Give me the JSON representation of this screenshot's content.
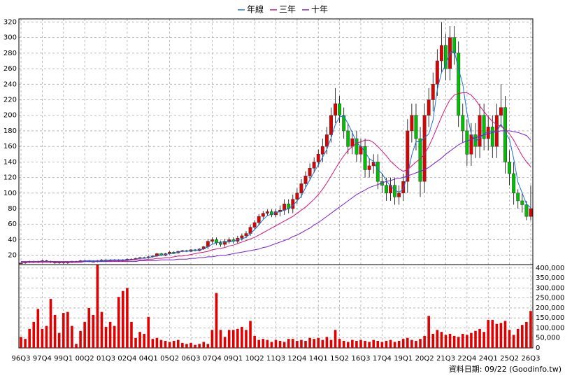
{
  "chart_data": {
    "type": "candlestick",
    "categories": [
      "96Q3",
      null,
      null,
      null,
      null,
      "97Q4",
      null,
      null,
      null,
      null,
      "99Q1",
      null,
      null,
      null,
      null,
      "00Q2",
      null,
      null,
      null,
      null,
      "01Q3",
      null,
      null,
      null,
      null,
      "02Q4",
      null,
      null,
      null,
      null,
      "04Q1",
      null,
      null,
      null,
      null,
      "05Q2",
      null,
      null,
      null,
      null,
      "06Q3",
      null,
      null,
      null,
      null,
      "07Q4",
      null,
      null,
      null,
      null,
      "09Q1",
      null,
      null,
      null,
      null,
      "10Q2",
      null,
      null,
      null,
      null,
      "11Q3",
      null,
      null,
      null,
      null,
      "12Q4",
      null,
      null,
      null,
      null,
      "14Q1",
      null,
      null,
      null,
      null,
      "15Q2",
      null,
      null,
      null,
      null,
      "16Q3",
      null,
      null,
      null,
      null,
      "17Q4",
      null,
      null,
      null,
      null,
      "19Q1",
      null,
      null,
      null,
      null,
      "20Q2",
      null,
      null,
      null,
      null,
      "21Q3",
      null,
      null,
      null,
      null,
      "22Q4",
      null,
      null,
      null,
      null,
      "24Q1",
      null,
      null,
      null,
      null,
      "25Q2",
      null,
      null,
      null,
      null,
      "26Q3"
    ],
    "open": [
      10,
      10,
      11,
      12,
      11,
      12,
      13,
      12,
      11,
      10,
      11,
      10,
      11,
      12,
      12,
      13,
      13,
      12,
      12,
      13,
      14,
      13,
      14,
      14,
      13,
      14,
      15,
      15,
      16,
      17,
      17,
      18,
      19,
      22,
      20,
      22,
      24,
      23,
      25,
      26,
      25,
      27,
      26,
      28,
      31,
      38,
      40,
      36,
      34,
      38,
      40,
      38,
      42,
      45,
      48,
      56,
      62,
      70,
      74,
      76,
      72,
      76,
      78,
      86,
      80,
      92,
      100,
      112,
      122,
      132,
      140,
      150,
      160,
      175,
      200,
      215,
      200,
      180,
      160,
      170,
      150,
      160,
      130,
      135,
      140,
      115,
      110,
      100,
      110,
      95,
      100,
      115,
      180,
      200,
      170,
      115,
      200,
      220,
      240,
      270,
      290,
      260,
      300,
      280,
      200,
      180,
      150,
      175,
      160,
      200,
      170,
      185,
      160,
      200,
      210,
      140,
      125,
      100,
      90,
      85,
      70
    ],
    "high": [
      11,
      12,
      13,
      13,
      13,
      14,
      14,
      13,
      12,
      12,
      12,
      12,
      13,
      13,
      14,
      14,
      14,
      13,
      14,
      15,
      15,
      15,
      15,
      15,
      15,
      16,
      16,
      17,
      18,
      18,
      19,
      20,
      23,
      23,
      23,
      25,
      25,
      26,
      27,
      27,
      28,
      28,
      29,
      32,
      41,
      43,
      43,
      39,
      41,
      43,
      43,
      45,
      48,
      51,
      59,
      65,
      73,
      77,
      79,
      79,
      79,
      84,
      92,
      92,
      98,
      106,
      118,
      128,
      138,
      146,
      156,
      170,
      185,
      210,
      235,
      225,
      210,
      190,
      180,
      180,
      170,
      170,
      145,
      150,
      150,
      125,
      120,
      120,
      120,
      110,
      125,
      195,
      215,
      215,
      185,
      215,
      235,
      255,
      285,
      320,
      305,
      315,
      315,
      295,
      215,
      195,
      190,
      190,
      215,
      215,
      200,
      200,
      215,
      240,
      225,
      155,
      140,
      105,
      100,
      90,
      110
    ],
    "low": [
      9,
      9,
      10,
      10,
      10,
      11,
      11,
      10,
      9,
      9,
      9,
      9,
      10,
      11,
      11,
      12,
      11,
      11,
      11,
      12,
      12,
      12,
      13,
      12,
      12,
      13,
      14,
      14,
      15,
      16,
      16,
      17,
      18,
      19,
      19,
      21,
      22,
      22,
      24,
      24,
      24,
      25,
      25,
      27,
      28,
      35,
      33,
      31,
      31,
      35,
      35,
      35,
      39,
      42,
      45,
      53,
      59,
      67,
      71,
      69,
      69,
      70,
      72,
      74,
      74,
      86,
      94,
      106,
      116,
      126,
      134,
      140,
      150,
      165,
      190,
      190,
      170,
      150,
      150,
      140,
      140,
      120,
      120,
      125,
      105,
      100,
      90,
      90,
      85,
      85,
      90,
      100,
      165,
      155,
      95,
      100,
      185,
      205,
      225,
      255,
      245,
      245,
      265,
      185,
      165,
      135,
      135,
      145,
      145,
      155,
      155,
      145,
      145,
      185,
      125,
      110,
      85,
      80,
      75,
      65,
      65
    ],
    "close": [
      10,
      11,
      12,
      11,
      12,
      13,
      12,
      11,
      10,
      11,
      10,
      11,
      12,
      12,
      13,
      13,
      12,
      12,
      13,
      14,
      13,
      14,
      14,
      13,
      14,
      15,
      15,
      16,
      17,
      17,
      18,
      19,
      22,
      20,
      22,
      24,
      23,
      25,
      26,
      25,
      27,
      26,
      28,
      31,
      38,
      40,
      36,
      34,
      38,
      40,
      38,
      42,
      45,
      48,
      56,
      62,
      70,
      74,
      76,
      72,
      76,
      78,
      86,
      80,
      92,
      100,
      112,
      122,
      132,
      140,
      150,
      160,
      175,
      200,
      215,
      200,
      180,
      160,
      170,
      150,
      160,
      130,
      135,
      140,
      115,
      110,
      100,
      110,
      95,
      100,
      115,
      180,
      200,
      170,
      115,
      200,
      220,
      240,
      270,
      290,
      260,
      300,
      280,
      200,
      180,
      150,
      175,
      160,
      200,
      170,
      185,
      160,
      200,
      210,
      140,
      125,
      100,
      90,
      85,
      70,
      80
    ],
    "up_color": "#e00000",
    "down_color": "#00c000",
    "series": [
      {
        "name": "年線",
        "color": "#1f6fd6",
        "values": [
          10,
          11,
          11,
          11,
          12,
          12,
          12,
          12,
          12,
          11,
          11,
          11,
          11,
          11,
          12,
          13,
          13,
          13,
          13,
          13,
          13,
          14,
          14,
          14,
          14,
          14,
          14,
          15,
          16,
          16,
          17,
          18,
          19,
          20,
          21,
          22,
          22,
          24,
          25,
          25,
          26,
          26,
          27,
          28,
          31,
          34,
          36,
          37,
          37,
          37,
          38,
          40,
          41,
          43,
          48,
          53,
          59,
          66,
          71,
          73,
          75,
          76,
          78,
          80,
          84,
          90,
          96,
          107,
          117,
          127,
          136,
          146,
          156,
          171,
          188,
          198,
          199,
          189,
          178,
          165,
          160,
          153,
          144,
          141,
          130,
          125,
          116,
          109,
          104,
          101,
          105,
          123,
          149,
          166,
          166,
          171,
          176,
          194,
          233,
          255,
          265,
          280,
          283,
          260,
          240,
          203,
          176,
          166,
          171,
          176,
          179,
          179,
          179,
          189,
          178,
          169,
          144,
          114,
          100,
          86,
          81
        ]
      },
      {
        "name": "三年",
        "color": "#d6137a",
        "values": [
          11,
          11,
          11,
          11,
          11,
          11,
          11,
          11,
          11,
          11,
          11,
          11,
          11,
          11,
          11,
          12,
          12,
          12,
          12,
          12,
          12,
          13,
          13,
          13,
          13,
          13,
          14,
          14,
          14,
          14,
          15,
          15,
          16,
          16,
          17,
          17,
          18,
          19,
          19,
          20,
          21,
          22,
          23,
          24,
          25,
          27,
          28,
          29,
          30,
          32,
          33,
          35,
          37,
          39,
          41,
          43,
          46,
          49,
          52,
          55,
          58,
          61,
          64,
          67,
          70,
          74,
          78,
          82,
          87,
          92,
          98,
          105,
          113,
          122,
          131,
          140,
          148,
          155,
          160,
          164,
          166,
          168,
          168,
          165,
          160,
          154,
          148,
          141,
          136,
          131,
          128,
          130,
          135,
          140,
          144,
          150,
          160,
          172,
          185,
          198,
          210,
          220,
          226,
          228,
          229,
          229,
          226,
          220,
          212,
          205,
          198,
          192,
          188,
          186,
          182,
          176,
          168,
          158,
          148,
          140,
          134
        ]
      },
      {
        "name": "十年",
        "color": "#7a1fd6",
        "values": [
          12,
          12,
          12,
          12,
          12,
          12,
          12,
          12,
          12,
          12,
          12,
          12,
          12,
          12,
          12,
          12,
          12,
          12,
          12,
          12,
          12,
          12,
          12,
          12,
          12,
          12,
          12,
          12,
          13,
          13,
          13,
          13,
          13,
          14,
          14,
          14,
          14,
          15,
          15,
          15,
          16,
          16,
          17,
          17,
          18,
          18,
          19,
          20,
          20,
          21,
          22,
          23,
          24,
          25,
          26,
          27,
          28,
          30,
          31,
          33,
          35,
          37,
          39,
          41,
          44,
          46,
          49,
          52,
          55,
          59,
          62,
          66,
          70,
          74,
          78,
          82,
          86,
          90,
          94,
          98,
          101,
          104,
          107,
          109,
          111,
          113,
          115,
          116,
          118,
          119,
          120,
          122,
          124,
          126,
          128,
          130,
          133,
          137,
          141,
          145,
          150,
          154,
          158,
          162,
          165,
          167,
          169,
          171,
          173,
          175,
          176,
          178,
          179,
          180,
          180,
          180,
          179,
          178,
          176,
          174,
          168
        ]
      }
    ],
    "ylim": [
      8,
      324
    ],
    "yticks": [
      20,
      40,
      60,
      80,
      100,
      120,
      140,
      160,
      180,
      200,
      220,
      240,
      260,
      280,
      300,
      320
    ],
    "grid": true,
    "volume": {
      "color": "#e00000",
      "ylim": [
        0,
        417000
      ],
      "yticks": [
        0,
        {
          "value": 50000,
          "label": "50,000"
        },
        {
          "value": 100000,
          "label": "100,000"
        },
        {
          "value": 150000,
          "label": "150,000"
        },
        {
          "value": 200000,
          "label": "200,000"
        },
        {
          "value": 250000,
          "label": "250,000"
        },
        {
          "value": 300000,
          "label": "300,000"
        },
        {
          "value": 350000,
          "label": "350,000"
        },
        {
          "value": 400000,
          "label": "400,000"
        }
      ],
      "values": [
        55000,
        45000,
        95000,
        130000,
        195000,
        95000,
        110000,
        245000,
        165000,
        75000,
        175000,
        180000,
        110000,
        20000,
        85000,
        130000,
        200000,
        165000,
        415000,
        180000,
        105000,
        130000,
        110000,
        255000,
        285000,
        300000,
        130000,
        50000,
        80000,
        70000,
        155000,
        45000,
        50000,
        40000,
        35000,
        30000,
        35000,
        40000,
        25000,
        20000,
        25000,
        15000,
        20000,
        30000,
        20000,
        90000,
        275000,
        90000,
        55000,
        90000,
        90000,
        95000,
        105000,
        90000,
        135000,
        60000,
        40000,
        45000,
        40000,
        30000,
        40000,
        35000,
        30000,
        45000,
        45000,
        35000,
        40000,
        35000,
        50000,
        45000,
        50000,
        40000,
        55000,
        40000,
        90000,
        45000,
        35000,
        30000,
        40000,
        35000,
        40000,
        35000,
        30000,
        40000,
        35000,
        30000,
        35000,
        40000,
        30000,
        35000,
        45000,
        50000,
        40000,
        35000,
        45000,
        60000,
        160000,
        70000,
        90000,
        80000,
        65000,
        70000,
        60000,
        55000,
        70000,
        65000,
        75000,
        85000,
        95000,
        80000,
        140000,
        140000,
        120000,
        125000,
        135000,
        90000,
        65000,
        95000,
        115000,
        130000,
        185000
      ]
    },
    "source_note": "資料日期: 09/22 (Goodinfo.tw)"
  }
}
